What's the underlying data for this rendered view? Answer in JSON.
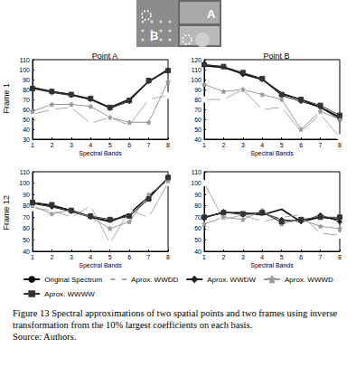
{
  "image": {
    "labels": [
      "B",
      "A"
    ]
  },
  "column_titles": [
    "Point A",
    "Point B"
  ],
  "row_titles": [
    "Frame 1",
    "Frame 12"
  ],
  "legend": "bottom",
  "series_styles": [
    {
      "name": "Original Spectrum",
      "color": "#000000",
      "marker": "none",
      "line_style": "solid"
    },
    {
      "name": "Aprox. WWDD",
      "color": "#aaaaaa",
      "marker": "open_circle",
      "line_style": "solid"
    },
    {
      "name": "Aprox. WWDW",
      "color": "#222222",
      "marker": "diamond",
      "line_style": "solid"
    },
    {
      "name": "Aprox. WWWD",
      "color": "#999999",
      "marker": "star",
      "line_style": "solid"
    },
    {
      "name": "Aprox. WWWW",
      "color": "#333333",
      "marker": "square",
      "line_style": "solid"
    }
  ],
  "chart_data": [
    {
      "type": "line",
      "xlabel": "Spectral Bands",
      "x": [
        1,
        2,
        3,
        4,
        5,
        6,
        7,
        8
      ],
      "xlim": [
        1,
        8
      ],
      "xticks": [
        1,
        2,
        3,
        4,
        5,
        6,
        7,
        8
      ],
      "ylim": [
        30,
        110
      ],
      "yticks": [
        30,
        40,
        50,
        60,
        70,
        80,
        90,
        100,
        110
      ],
      "grid": false,
      "series": [
        {
          "name": "Original Spectrum",
          "values": [
            82,
            78,
            75,
            70,
            62,
            70,
            88,
            100
          ]
        },
        {
          "name": "Aprox. WWDD",
          "values": [
            55,
            60,
            62,
            46,
            52,
            44,
            70,
            74
          ]
        },
        {
          "name": "Aprox. WWDW",
          "values": [
            81,
            77,
            74,
            70,
            61,
            68,
            88,
            99
          ]
        },
        {
          "name": "Aprox. WWWD",
          "values": [
            58,
            65,
            65,
            63,
            52,
            47,
            47,
            88
          ]
        },
        {
          "name": "Aprox. WWWW",
          "values": [
            81,
            78,
            75,
            71,
            62,
            69,
            89,
            99
          ]
        }
      ]
    },
    {
      "type": "line",
      "xlabel": "Spectral Bands",
      "x": [
        1,
        2,
        3,
        4,
        5,
        6,
        7,
        8
      ],
      "xlim": [
        1,
        8
      ],
      "xticks": [
        1,
        2,
        3,
        4,
        5,
        6,
        7,
        8
      ],
      "ylim": [
        40,
        120
      ],
      "yticks": [
        40,
        50,
        60,
        70,
        80,
        90,
        100,
        110,
        120
      ],
      "grid": false,
      "series": [
        {
          "name": "Original Spectrum",
          "values": [
            114,
            112,
            106,
            100,
            86,
            80,
            72,
            62
          ]
        },
        {
          "name": "Aprox. WWDD",
          "values": [
            80,
            80,
            90,
            70,
            72,
            48,
            65,
            42
          ]
        },
        {
          "name": "Aprox. WWDW",
          "values": [
            115,
            113,
            105,
            100,
            84,
            78,
            72,
            60
          ]
        },
        {
          "name": "Aprox. WWWD",
          "values": [
            95,
            88,
            90,
            85,
            80,
            50,
            68,
            60
          ]
        },
        {
          "name": "Aprox. WWWW",
          "values": [
            115,
            113,
            107,
            101,
            85,
            80,
            74,
            64
          ]
        }
      ]
    },
    {
      "type": "line",
      "xlabel": "Spectral Bands",
      "x": [
        1,
        2,
        3,
        4,
        5,
        6,
        7,
        8
      ],
      "xlim": [
        1,
        8
      ],
      "xticks": [
        1,
        2,
        3,
        4,
        5,
        6,
        7,
        8
      ],
      "ylim": [
        40,
        110
      ],
      "yticks": [
        40,
        50,
        60,
        70,
        80,
        90,
        100,
        110
      ],
      "grid": false,
      "series": [
        {
          "name": "Original Spectrum",
          "values": [
            83,
            80,
            76,
            70,
            66,
            73,
            88,
            104
          ]
        },
        {
          "name": "Aprox. WWDD",
          "values": [
            78,
            76,
            70,
            80,
            47,
            76,
            70,
            100
          ]
        },
        {
          "name": "Aprox. WWDW",
          "values": [
            82,
            79,
            75,
            70,
            67,
            71,
            86,
            105
          ]
        },
        {
          "name": "Aprox. WWWD",
          "values": [
            80,
            73,
            76,
            70,
            60,
            66,
            90,
            102
          ]
        },
        {
          "name": "Aprox. WWWW",
          "values": [
            83,
            81,
            76,
            71,
            68,
            71,
            86,
            105
          ]
        }
      ]
    },
    {
      "type": "line",
      "xlabel": "Spectral Bands",
      "x": [
        1,
        2,
        3,
        4,
        5,
        6,
        7,
        8
      ],
      "xlim": [
        1,
        8
      ],
      "xticks": [
        1,
        2,
        3,
        4,
        5,
        6,
        7,
        8
      ],
      "ylim": [
        40,
        110
      ],
      "yticks": [
        40,
        50,
        60,
        70,
        80,
        90,
        100,
        110
      ],
      "grid": false,
      "series": [
        {
          "name": "Original Spectrum",
          "values": [
            70,
            74,
            74,
            72,
            77,
            66,
            70,
            68
          ]
        },
        {
          "name": "Aprox. WWDD",
          "values": [
            100,
            68,
            72,
            66,
            70,
            72,
            56,
            54
          ]
        },
        {
          "name": "Aprox. WWDW",
          "values": [
            69,
            75,
            72,
            74,
            68,
            66,
            72,
            66
          ]
        },
        {
          "name": "Aprox. WWWD",
          "values": [
            64,
            70,
            68,
            76,
            64,
            68,
            62,
            60
          ]
        },
        {
          "name": "Aprox. WWWW",
          "values": [
            70,
            74,
            73,
            74,
            66,
            68,
            70,
            70
          ]
        }
      ]
    }
  ],
  "caption": [
    "Figure 13 Spectral approximations of two spatial points and two frames using inverse transformation from the 10% largest coefficients on each basis.",
    "Source: Authors."
  ]
}
